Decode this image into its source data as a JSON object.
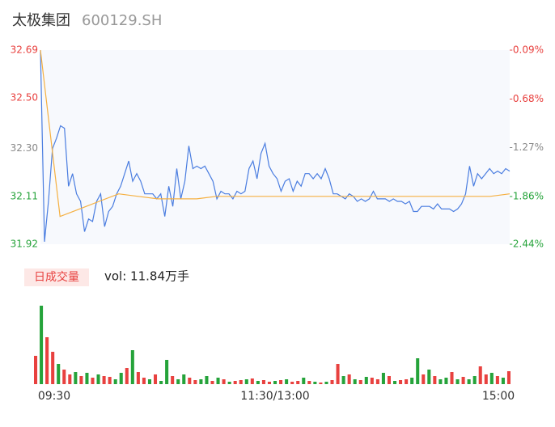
{
  "chart_data": {
    "type": "intraday",
    "title": "太极集团",
    "subtitle": "600129.SH",
    "ylim": [
      31.92,
      32.69
    ],
    "yticks": [
      32.69,
      {
        "value": 32.5,
        "label": "32.50"
      },
      {
        "value": 32.3,
        "label": "32.30"
      },
      32.11,
      31.92
    ],
    "y2lim": [
      -2.44,
      -0.09
    ],
    "y2ticks": [
      {
        "value": -0.09,
        "label": "-0.09%"
      },
      {
        "value": -0.68,
        "label": "-0.68%"
      },
      {
        "value": -1.27,
        "label": "-1.27%"
      },
      {
        "value": -1.86,
        "label": "-1.86%"
      },
      {
        "value": -2.44,
        "label": "-2.44%"
      }
    ],
    "tick_colors": [
      "#e8413f",
      "#e8413f",
      "#888888",
      "#25a33a",
      "#25a33a"
    ],
    "series": [
      {
        "color": "#4a7de0",
        "values": [
          32.69,
          31.93,
          32.09,
          32.3,
          32.34,
          32.39,
          32.38,
          32.15,
          32.2,
          32.12,
          32.09,
          31.97,
          32.02,
          32.01,
          32.09,
          32.12,
          31.99,
          32.05,
          32.07,
          32.12,
          32.15,
          32.2,
          32.25,
          32.17,
          32.2,
          32.17,
          32.12,
          32.12,
          32.12,
          32.1,
          32.12,
          32.03,
          32.15,
          32.07,
          32.22,
          32.1,
          32.17,
          32.31,
          32.22,
          32.23,
          32.22,
          32.23,
          32.2,
          32.17,
          32.1,
          32.13,
          32.12,
          32.12,
          32.1,
          32.13,
          32.12,
          32.13,
          32.22,
          32.25,
          32.18,
          32.28,
          32.32,
          32.23,
          32.2,
          32.18,
          32.13,
          32.17,
          32.18,
          32.13,
          32.17,
          32.15,
          32.2,
          32.2,
          32.18,
          32.2,
          32.18,
          32.22,
          32.18,
          32.12,
          32.12,
          32.11,
          32.1,
          32.12,
          32.11,
          32.09,
          32.1,
          32.09,
          32.1,
          32.13,
          32.1,
          32.1,
          32.1,
          32.09,
          32.1,
          32.09,
          32.09,
          32.08,
          32.09,
          32.05,
          32.05,
          32.07,
          32.07,
          32.07,
          32.06,
          32.08,
          32.06,
          32.06,
          32.06,
          32.05,
          32.06,
          32.08,
          32.12,
          32.23,
          32.15,
          32.2,
          32.18,
          32.2,
          32.22,
          32.2,
          32.21,
          32.2,
          32.22,
          32.21
        ]
      },
      {
        "color": "#f5b041",
        "values": [
          32.69,
          32.03,
          32.06,
          32.09,
          32.12,
          32.11,
          32.1,
          32.1,
          32.1,
          32.11,
          32.11,
          32.11,
          32.11,
          32.11,
          32.11,
          32.11,
          32.11,
          32.11,
          32.11,
          32.11,
          32.11,
          32.11,
          32.11,
          32.11,
          32.12
        ]
      }
    ],
    "volume_label": "日成交量",
    "volume_text": "vol: 11.84万手",
    "volume_ylim": [
      0,
      100
    ],
    "up_color": "#e8413f",
    "down_color": "#25a33a",
    "volume": [
      35,
      97,
      58,
      40,
      25,
      18,
      12,
      15,
      10,
      14,
      8,
      12,
      10,
      9,
      6,
      14,
      20,
      42,
      15,
      8,
      6,
      12,
      4,
      30,
      10,
      6,
      12,
      8,
      5,
      6,
      10,
      4,
      8,
      6,
      3,
      4,
      5,
      6,
      7,
      4,
      5,
      3,
      4,
      5,
      6,
      3,
      4,
      8,
      4,
      3,
      2,
      3,
      5,
      25,
      10,
      12,
      6,
      5,
      9,
      8,
      6,
      14,
      10,
      4,
      5,
      6,
      8,
      32,
      12,
      18,
      10,
      6,
      8,
      15,
      6,
      9,
      6,
      10,
      22,
      12,
      14,
      10,
      8,
      16
    ],
    "volume_up": [
      1,
      0,
      1,
      1,
      0,
      1,
      1,
      0,
      1,
      0,
      1,
      0,
      1,
      1,
      0,
      0,
      1,
      0,
      1,
      1,
      0,
      1,
      0,
      0,
      1,
      0,
      0,
      1,
      1,
      0,
      0,
      1,
      0,
      1,
      0,
      1,
      1,
      0,
      1,
      0,
      1,
      1,
      0,
      1,
      0,
      1,
      1,
      0,
      1,
      0,
      1,
      0,
      1,
      1,
      0,
      1,
      0,
      1,
      0,
      1,
      1,
      0,
      1,
      0,
      1,
      1,
      0,
      0,
      1,
      0,
      1,
      0,
      0,
      1,
      0,
      1,
      0,
      0,
      1,
      1,
      0,
      1,
      0,
      1
    ],
    "x_labels": [
      "09:30",
      "11:30/13:00",
      "15:00"
    ]
  }
}
